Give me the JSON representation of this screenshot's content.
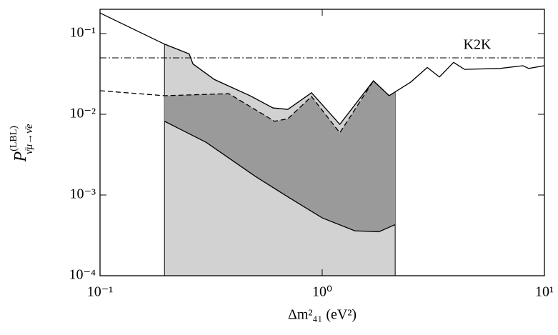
{
  "chart_data": {
    "type": "line",
    "x_label": "Δm²₄₁   (eV²)",
    "y_label": {
      "main": "P",
      "superscript": "(LBL)",
      "subscript": "ν̄μ→ν̄e"
    },
    "log_x": true,
    "log_y": true,
    "xlim": [
      0.1,
      10
    ],
    "ylim": [
      0.0001,
      0.2
    ],
    "xticks": [
      {
        "value": 0.1,
        "label": "10⁻¹"
      },
      {
        "value": 1,
        "label": "10⁰"
      },
      {
        "value": 10,
        "label": "10¹"
      }
    ],
    "yticks": [
      {
        "value": 0.0001,
        "label": "10⁻⁴"
      },
      {
        "value": 0.001,
        "label": "10⁻³"
      },
      {
        "value": 0.01,
        "label": "10⁻²"
      },
      {
        "value": 0.1,
        "label": "10⁻¹"
      }
    ],
    "series": [
      {
        "color": "#000000",
        "dash": "solid",
        "x": [
          0.1,
          0.195,
          0.252,
          0.262,
          0.327,
          0.473,
          0.6,
          0.7,
          0.895,
          1.2,
          1.7,
          2.0,
          2.5,
          2.97,
          3.37,
          3.9,
          4.37,
          6.3,
          8,
          8.5,
          10
        ],
        "values": [
          0.18,
          0.074,
          0.056,
          0.042,
          0.027,
          0.017,
          0.012,
          0.0115,
          0.0185,
          0.0075,
          0.026,
          0.017,
          0.025,
          0.038,
          0.029,
          0.044,
          0.036,
          0.037,
          0.04,
          0.037,
          0.04
        ]
      },
      {
        "color": "#000000",
        "dash": "dashed",
        "x": [
          0.1,
          0.195,
          0.38,
          0.61,
          0.7,
          0.895,
          1.2,
          1.7,
          2.0
        ],
        "values": [
          0.0196,
          0.017,
          0.018,
          0.0082,
          0.0088,
          0.0166,
          0.0059,
          0.026,
          0.017
        ]
      },
      {
        "color": "#000000",
        "dash": "solid",
        "x": [
          0.195,
          0.3,
          0.5,
          0.7,
          1.0,
          1.4,
          1.8,
          2.13
        ],
        "values": [
          0.0082,
          0.0045,
          0.0017,
          0.00095,
          0.00052,
          0.00036,
          0.00035,
          0.00043
        ]
      }
    ],
    "region_colors": {
      "light": "#d2d2d2",
      "dark": "#9a9a9a"
    },
    "reference_lines": [
      {
        "label": "K2K",
        "value": 0.05,
        "style": "dashdot"
      }
    ]
  }
}
